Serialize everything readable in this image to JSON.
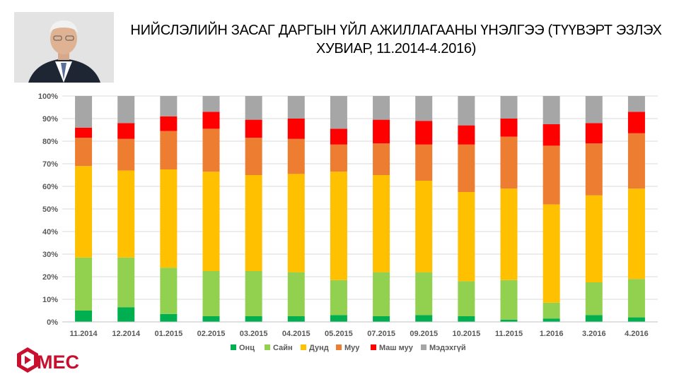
{
  "title": "НИЙСЛЭЛИЙН  ЗАСАГ ДАРГЫН ҮЙЛ АЖИЛЛАГААНЫ ҮНЭЛГЭЭ (ТҮҮВЭРТ ЭЗЛЭХ ХУВИАР, 11.2014-4.2016)",
  "logo": {
    "text": "MEC"
  },
  "colors": {
    "Онц": "#00b050",
    "Сайн": "#92d050",
    "Дунд": "#ffc000",
    "Муу": "#ed7d31",
    "Маш муу": "#ff0000",
    "Мэдэхгүй": "#a6a6a6"
  },
  "chart_data": {
    "type": "bar",
    "stacked": true,
    "categories": [
      "11.2014",
      "12.2014",
      "01.2015",
      "02.2015",
      "03.2015",
      "04.2015",
      "05.2015",
      "07.2015",
      "09.2015",
      "10.2015",
      "11.2015",
      "1.2016",
      "3.2016",
      "4.2016"
    ],
    "series": [
      {
        "name": "Онц",
        "values": [
          5,
          6.5,
          3.5,
          2.5,
          2.5,
          2.5,
          3,
          2.5,
          3,
          2.5,
          1,
          1.5,
          3,
          2
        ]
      },
      {
        "name": "Сайн",
        "values": [
          23.5,
          22,
          20.5,
          20,
          20,
          19.5,
          15.5,
          19.5,
          19,
          15.5,
          17.5,
          7,
          14.5,
          17
        ]
      },
      {
        "name": "Дунд",
        "values": [
          40.5,
          38.5,
          43.5,
          44,
          42.5,
          43.5,
          48,
          43,
          40.5,
          39.5,
          40.5,
          43.5,
          38.5,
          40
        ]
      },
      {
        "name": "Муу",
        "values": [
          12.5,
          14,
          17,
          19,
          16.5,
          15.5,
          12,
          14,
          16,
          21,
          23,
          26,
          23,
          24.5
        ]
      },
      {
        "name": "Маш муу",
        "values": [
          4.5,
          7,
          6.5,
          7.5,
          8,
          9,
          7,
          10.5,
          10.5,
          8.5,
          8,
          9.5,
          9,
          9.5
        ]
      },
      {
        "name": "Мэдэхгүй",
        "values": [
          14,
          12,
          9,
          7,
          10.5,
          10,
          14.5,
          10.5,
          11,
          13,
          10,
          12.5,
          12,
          7
        ]
      }
    ],
    "yticks": [
      "0%",
      "10%",
      "20%",
      "30%",
      "40%",
      "50%",
      "60%",
      "70%",
      "80%",
      "90%",
      "100%"
    ],
    "ylim": [
      0,
      100
    ],
    "grid": true,
    "legend_position": "bottom"
  }
}
